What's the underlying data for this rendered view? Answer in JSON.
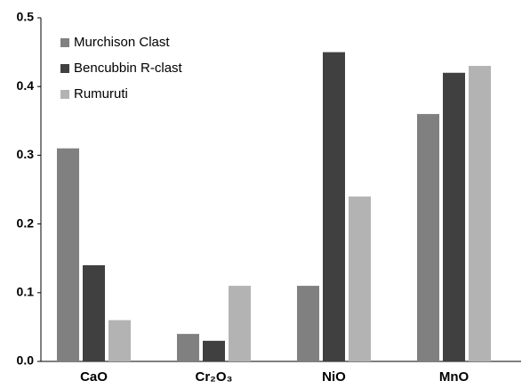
{
  "chart_data": {
    "type": "bar",
    "categories": [
      "CaO",
      "Cr₂O₃",
      "NiO",
      "MnO"
    ],
    "series": [
      {
        "name": "Murchison Clast",
        "color": "#808080",
        "values": [
          0.31,
          0.04,
          0.11,
          0.36
        ]
      },
      {
        "name": "Bencubbin R-clast",
        "color": "#404040",
        "values": [
          0.14,
          0.03,
          0.45,
          0.42
        ]
      },
      {
        "name": "Rumuruti",
        "color": "#b3b3b3",
        "values": [
          0.06,
          0.11,
          0.24,
          0.43
        ]
      }
    ],
    "ylim": [
      0,
      0.5
    ],
    "yticks": [
      {
        "value": 0,
        "label": "0.0"
      },
      0.1,
      0.2,
      0.3,
      0.4,
      0.5
    ],
    "grid": false,
    "legend": "upper left"
  }
}
